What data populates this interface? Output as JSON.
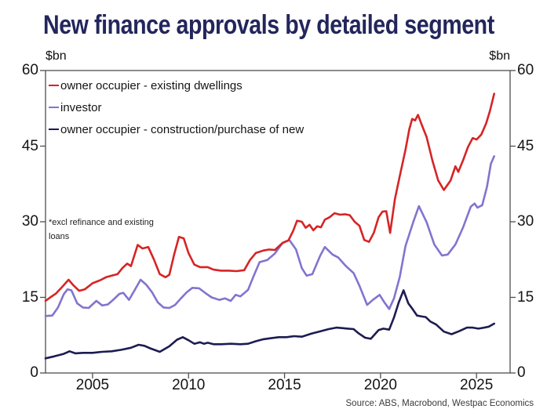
{
  "title": "New finance approvals by detailed segment",
  "units": {
    "left": "$bn",
    "right": "$bn"
  },
  "annotation": {
    "line1": "*excl refinance and existing",
    "line2": "loans"
  },
  "source": "Source: ABS, Macrobond, Westpac Economics",
  "colors": {
    "title": "#23265c",
    "axis": "#4f4f4f",
    "red": "#d62425",
    "purple": "#8274cf",
    "navy": "#1c1c52"
  },
  "chart_data": {
    "type": "line",
    "title": "New finance approvals by detailed segment",
    "xlabel": "",
    "ylabel": "$bn",
    "ylim": [
      0,
      60
    ],
    "yticks": [
      0,
      15,
      30,
      45,
      60
    ],
    "xlim": [
      2002.55,
      2026.75
    ],
    "xticks": [
      2005,
      2010,
      2015,
      2020,
      2025
    ],
    "grid": false,
    "legend_position": "upper-left-inside",
    "note": "*excl refinance and existing loans",
    "series": [
      {
        "name": "owner occupier - existing dwellings",
        "color": "#d62425",
        "points": [
          [
            2002.55,
            14.3
          ],
          [
            2002.8,
            15.0
          ],
          [
            2003.1,
            15.8
          ],
          [
            2003.4,
            17.0
          ],
          [
            2003.75,
            18.5
          ],
          [
            2004.0,
            17.4
          ],
          [
            2004.3,
            16.3
          ],
          [
            2004.6,
            16.6
          ],
          [
            2005.0,
            17.8
          ],
          [
            2005.4,
            18.4
          ],
          [
            2005.7,
            19.0
          ],
          [
            2006.0,
            19.3
          ],
          [
            2006.3,
            19.6
          ],
          [
            2006.55,
            20.8
          ],
          [
            2006.8,
            21.7
          ],
          [
            2007.0,
            21.2
          ],
          [
            2007.35,
            25.4
          ],
          [
            2007.6,
            24.7
          ],
          [
            2007.9,
            25.0
          ],
          [
            2008.2,
            22.5
          ],
          [
            2008.5,
            19.6
          ],
          [
            2008.8,
            19.0
          ],
          [
            2009.0,
            19.5
          ],
          [
            2009.25,
            23.5
          ],
          [
            2009.5,
            27.0
          ],
          [
            2009.75,
            26.7
          ],
          [
            2010.0,
            23.8
          ],
          [
            2010.3,
            21.5
          ],
          [
            2010.6,
            21.0
          ],
          [
            2011.0,
            21.0
          ],
          [
            2011.3,
            20.5
          ],
          [
            2011.7,
            20.3
          ],
          [
            2012.1,
            20.3
          ],
          [
            2012.5,
            20.2
          ],
          [
            2012.9,
            20.4
          ],
          [
            2013.2,
            22.4
          ],
          [
            2013.5,
            23.8
          ],
          [
            2013.9,
            24.3
          ],
          [
            2014.2,
            24.5
          ],
          [
            2014.5,
            24.4
          ],
          [
            2014.9,
            25.8
          ],
          [
            2015.2,
            26.3
          ],
          [
            2015.45,
            28.2
          ],
          [
            2015.65,
            30.2
          ],
          [
            2015.9,
            30.0
          ],
          [
            2016.1,
            28.8
          ],
          [
            2016.3,
            29.4
          ],
          [
            2016.5,
            28.3
          ],
          [
            2016.7,
            29.1
          ],
          [
            2016.9,
            28.9
          ],
          [
            2017.1,
            30.4
          ],
          [
            2017.35,
            30.9
          ],
          [
            2017.6,
            31.7
          ],
          [
            2017.9,
            31.4
          ],
          [
            2018.15,
            31.5
          ],
          [
            2018.4,
            31.3
          ],
          [
            2018.65,
            30.0
          ],
          [
            2018.9,
            29.2
          ],
          [
            2019.15,
            26.4
          ],
          [
            2019.4,
            26.0
          ],
          [
            2019.65,
            27.8
          ],
          [
            2019.9,
            30.9
          ],
          [
            2020.1,
            32.0
          ],
          [
            2020.3,
            32.1
          ],
          [
            2020.5,
            27.8
          ],
          [
            2020.75,
            34.5
          ],
          [
            2021.0,
            39.0
          ],
          [
            2021.3,
            44.3
          ],
          [
            2021.5,
            48.4
          ],
          [
            2021.65,
            50.4
          ],
          [
            2021.8,
            50.1
          ],
          [
            2021.95,
            51.2
          ],
          [
            2022.15,
            49.2
          ],
          [
            2022.4,
            46.8
          ],
          [
            2022.7,
            42.2
          ],
          [
            2023.0,
            38.2
          ],
          [
            2023.3,
            36.3
          ],
          [
            2023.65,
            38.2
          ],
          [
            2023.9,
            41.0
          ],
          [
            2024.05,
            39.9
          ],
          [
            2024.3,
            42.2
          ],
          [
            2024.55,
            44.8
          ],
          [
            2024.8,
            46.6
          ],
          [
            2025.0,
            46.3
          ],
          [
            2025.25,
            47.3
          ],
          [
            2025.5,
            49.5
          ],
          [
            2025.7,
            52.0
          ],
          [
            2025.92,
            55.4
          ]
        ]
      },
      {
        "name": "investor",
        "color": "#8274cf",
        "points": [
          [
            2002.55,
            11.3
          ],
          [
            2002.9,
            11.4
          ],
          [
            2003.2,
            13.0
          ],
          [
            2003.5,
            15.6
          ],
          [
            2003.7,
            16.6
          ],
          [
            2003.9,
            16.4
          ],
          [
            2004.2,
            13.8
          ],
          [
            2004.5,
            13.0
          ],
          [
            2004.8,
            12.9
          ],
          [
            2005.2,
            14.3
          ],
          [
            2005.5,
            13.4
          ],
          [
            2005.8,
            13.6
          ],
          [
            2006.1,
            14.6
          ],
          [
            2006.4,
            15.7
          ],
          [
            2006.6,
            15.9
          ],
          [
            2006.9,
            14.5
          ],
          [
            2007.2,
            16.5
          ],
          [
            2007.5,
            18.5
          ],
          [
            2007.8,
            17.5
          ],
          [
            2008.1,
            16.0
          ],
          [
            2008.4,
            14.0
          ],
          [
            2008.7,
            13.0
          ],
          [
            2009.0,
            12.9
          ],
          [
            2009.3,
            13.5
          ],
          [
            2009.6,
            14.8
          ],
          [
            2009.9,
            16.0
          ],
          [
            2010.2,
            16.9
          ],
          [
            2010.55,
            16.8
          ],
          [
            2010.9,
            15.8
          ],
          [
            2011.2,
            15.0
          ],
          [
            2011.6,
            14.5
          ],
          [
            2011.9,
            14.8
          ],
          [
            2012.2,
            14.3
          ],
          [
            2012.45,
            15.5
          ],
          [
            2012.7,
            15.2
          ],
          [
            2013.1,
            16.5
          ],
          [
            2013.4,
            19.3
          ],
          [
            2013.7,
            22.0
          ],
          [
            2014.1,
            22.4
          ],
          [
            2014.5,
            23.7
          ],
          [
            2014.9,
            25.8
          ],
          [
            2015.25,
            26.4
          ],
          [
            2015.6,
            24.5
          ],
          [
            2015.9,
            20.8
          ],
          [
            2016.15,
            19.3
          ],
          [
            2016.45,
            19.6
          ],
          [
            2016.85,
            23.2
          ],
          [
            2017.1,
            25.0
          ],
          [
            2017.5,
            23.5
          ],
          [
            2017.8,
            22.9
          ],
          [
            2018.2,
            21.2
          ],
          [
            2018.6,
            19.8
          ],
          [
            2018.9,
            17.3
          ],
          [
            2019.3,
            13.5
          ],
          [
            2019.6,
            14.5
          ],
          [
            2019.95,
            15.5
          ],
          [
            2020.2,
            14.0
          ],
          [
            2020.45,
            12.7
          ],
          [
            2020.7,
            14.8
          ],
          [
            2021.0,
            19.0
          ],
          [
            2021.3,
            25.2
          ],
          [
            2021.7,
            29.9
          ],
          [
            2022.0,
            33.1
          ],
          [
            2022.4,
            29.9
          ],
          [
            2022.8,
            25.5
          ],
          [
            2023.2,
            23.3
          ],
          [
            2023.5,
            23.5
          ],
          [
            2023.9,
            25.5
          ],
          [
            2024.3,
            28.9
          ],
          [
            2024.7,
            33.0
          ],
          [
            2024.9,
            33.6
          ],
          [
            2025.05,
            32.8
          ],
          [
            2025.3,
            33.3
          ],
          [
            2025.55,
            37.0
          ],
          [
            2025.75,
            41.5
          ],
          [
            2025.92,
            43.0
          ]
        ]
      },
      {
        "name": "owner occupier - construction/purchase of new",
        "color": "#1c1c52",
        "points": [
          [
            2002.55,
            2.9
          ],
          [
            2003.0,
            3.3
          ],
          [
            2003.5,
            3.8
          ],
          [
            2003.8,
            4.3
          ],
          [
            2004.1,
            3.9
          ],
          [
            2004.5,
            4.0
          ],
          [
            2005.0,
            4.0
          ],
          [
            2005.5,
            4.2
          ],
          [
            2006.0,
            4.3
          ],
          [
            2006.5,
            4.6
          ],
          [
            2007.0,
            5.0
          ],
          [
            2007.4,
            5.6
          ],
          [
            2007.7,
            5.4
          ],
          [
            2008.0,
            4.9
          ],
          [
            2008.5,
            4.2
          ],
          [
            2009.0,
            5.3
          ],
          [
            2009.4,
            6.6
          ],
          [
            2009.7,
            7.1
          ],
          [
            2010.0,
            6.5
          ],
          [
            2010.3,
            5.8
          ],
          [
            2010.6,
            6.1
          ],
          [
            2010.8,
            5.8
          ],
          [
            2011.0,
            6.0
          ],
          [
            2011.3,
            5.7
          ],
          [
            2011.7,
            5.7
          ],
          [
            2012.2,
            5.8
          ],
          [
            2012.7,
            5.7
          ],
          [
            2013.1,
            5.8
          ],
          [
            2013.5,
            6.3
          ],
          [
            2013.9,
            6.7
          ],
          [
            2014.3,
            6.9
          ],
          [
            2014.7,
            7.1
          ],
          [
            2015.1,
            7.1
          ],
          [
            2015.5,
            7.3
          ],
          [
            2015.9,
            7.2
          ],
          [
            2016.4,
            7.8
          ],
          [
            2016.8,
            8.2
          ],
          [
            2017.3,
            8.7
          ],
          [
            2017.7,
            9.0
          ],
          [
            2018.0,
            8.9
          ],
          [
            2018.3,
            8.8
          ],
          [
            2018.6,
            8.7
          ],
          [
            2018.85,
            7.9
          ],
          [
            2019.2,
            7.0
          ],
          [
            2019.5,
            6.8
          ],
          [
            2019.9,
            8.5
          ],
          [
            2020.15,
            8.8
          ],
          [
            2020.45,
            8.6
          ],
          [
            2020.7,
            11.0
          ],
          [
            2020.95,
            14.0
          ],
          [
            2021.2,
            16.4
          ],
          [
            2021.45,
            13.8
          ],
          [
            2021.65,
            12.8
          ],
          [
            2021.9,
            11.4
          ],
          [
            2022.15,
            11.2
          ],
          [
            2022.35,
            11.1
          ],
          [
            2022.6,
            10.2
          ],
          [
            2022.9,
            9.6
          ],
          [
            2023.3,
            8.2
          ],
          [
            2023.7,
            7.7
          ],
          [
            2024.1,
            8.3
          ],
          [
            2024.5,
            9.0
          ],
          [
            2024.8,
            9.0
          ],
          [
            2025.1,
            8.8
          ],
          [
            2025.4,
            9.0
          ],
          [
            2025.65,
            9.2
          ],
          [
            2025.92,
            9.8
          ]
        ]
      }
    ]
  }
}
